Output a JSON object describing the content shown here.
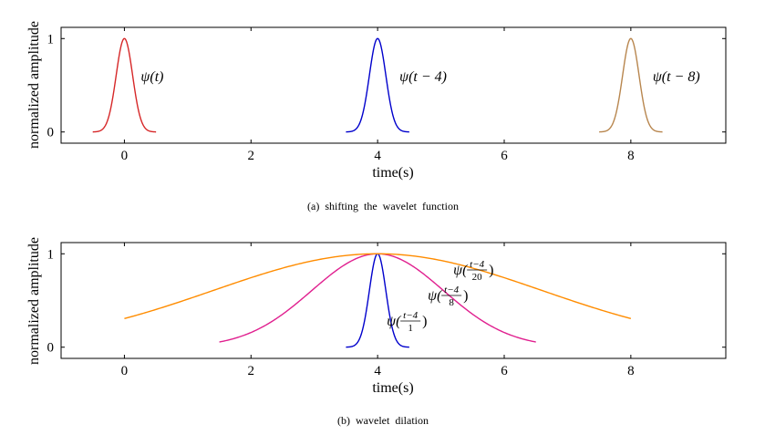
{
  "chart_data": [
    {
      "type": "line",
      "caption": "(a)  shifting  the  wavelet  function",
      "xlabel": "time(s)",
      "ylabel": "normalized amplitude",
      "xlim": [
        -1,
        9.5
      ],
      "ylim": [
        -0.12,
        1.12
      ],
      "xticks": [
        0,
        2,
        4,
        6,
        8
      ],
      "yticks": [
        0,
        1
      ],
      "grid": false,
      "series": [
        {
          "name": "ψ(t)",
          "color": "#d62728",
          "center": 0,
          "scale": 1,
          "x_range": [
            -0.5,
            0.5
          ]
        },
        {
          "name": "ψ(t − 4)",
          "color": "#0000cc",
          "center": 4,
          "scale": 1,
          "x_range": [
            3.5,
            4.5
          ]
        },
        {
          "name": "ψ(t − 8)",
          "color": "#b8864e",
          "center": 8,
          "scale": 1,
          "x_range": [
            7.5,
            8.5
          ]
        }
      ]
    },
    {
      "type": "line",
      "caption": "(b)  wavelet  dilation",
      "xlabel": "time(s)",
      "ylabel": "normalized amplitude",
      "xlim": [
        -1,
        9.5
      ],
      "ylim": [
        -0.12,
        1.12
      ],
      "xticks": [
        0,
        2,
        4,
        6,
        8
      ],
      "yticks": [
        0,
        1
      ],
      "grid": false,
      "series": [
        {
          "name": "ψ((t−4)/1)",
          "frac_num": "t−4",
          "frac_den": "1",
          "color": "#0000cc",
          "center": 4,
          "scale": 1,
          "x_range": [
            3.5,
            4.5
          ]
        },
        {
          "name": "ψ((t−4)/8)",
          "frac_num": "t−4",
          "frac_den": "8",
          "color": "#e0208f",
          "center": 4,
          "scale": 8,
          "x_range": [
            1.5,
            6.5
          ]
        },
        {
          "name": "ψ((t−4)/20)",
          "frac_num": "t−4",
          "frac_den": "20",
          "color": "#ff8c00",
          "center": 4,
          "scale": 20,
          "x_range": [
            0,
            8
          ]
        }
      ]
    }
  ]
}
